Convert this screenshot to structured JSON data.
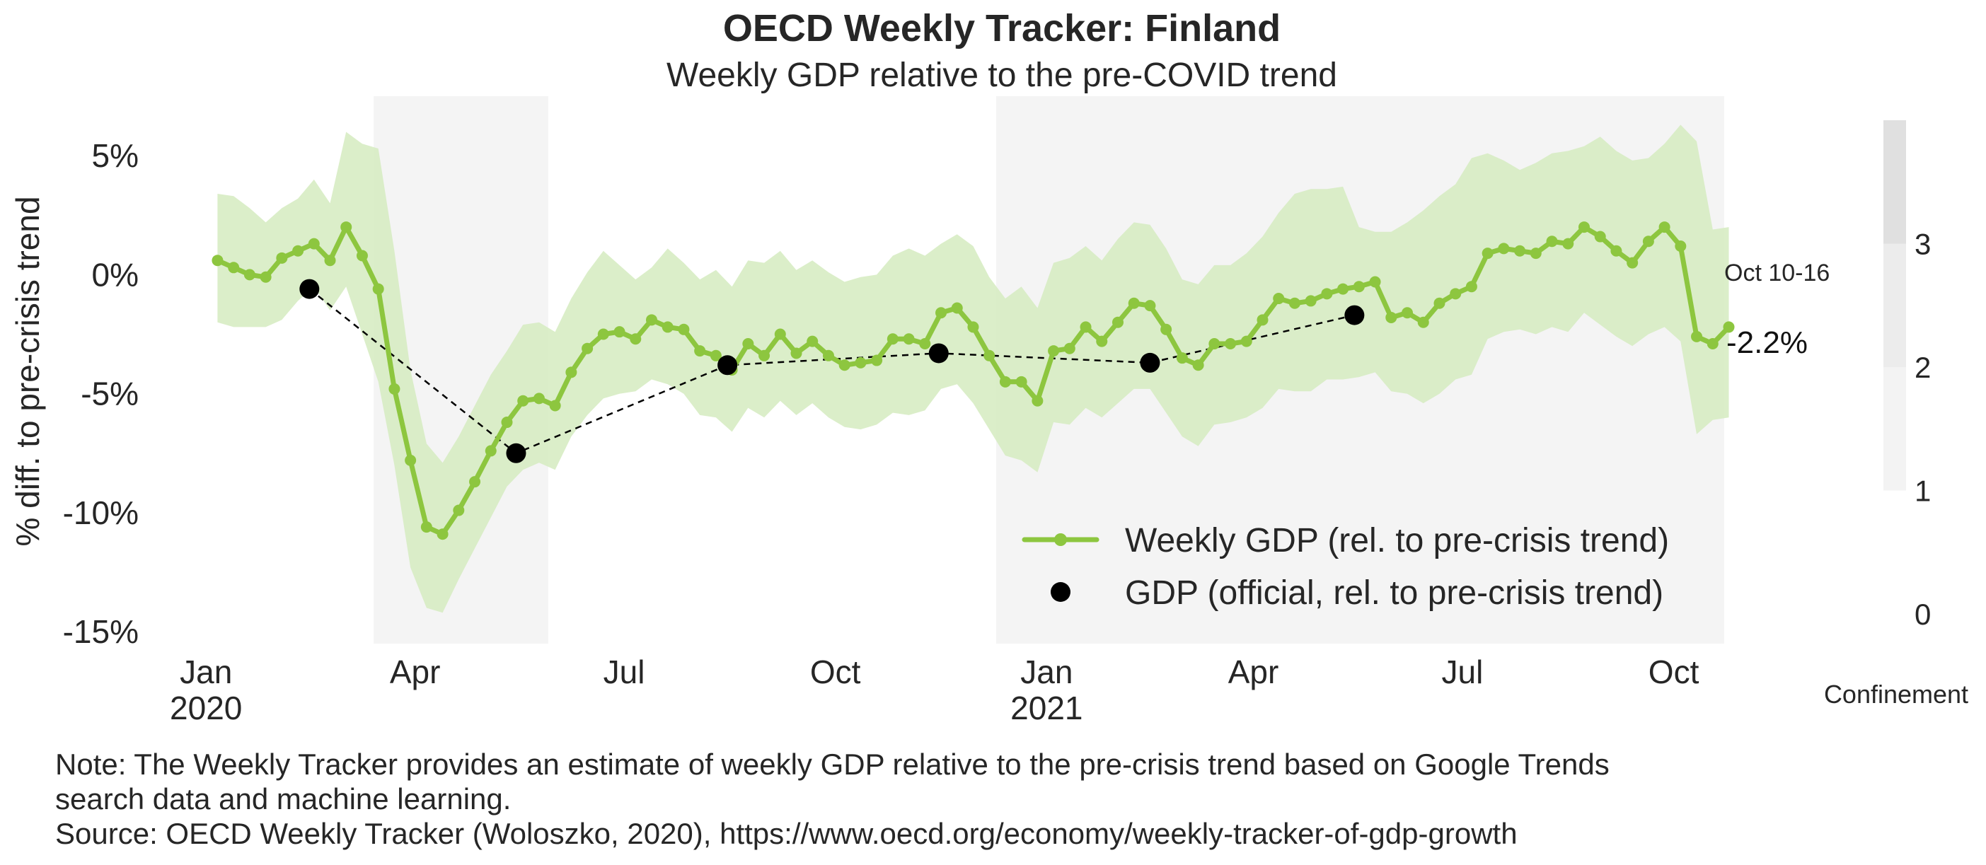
{
  "chart_data": {
    "type": "line",
    "title": "OECD Weekly Tracker: Finland",
    "subtitle": "Weekly GDP relative to the pre-COVID trend",
    "ylabel": "% diff. to pre-crisis trend",
    "ylim": [
      -15.5,
      7.5
    ],
    "yticks": [
      5,
      0,
      -5,
      -10,
      -15
    ],
    "ytick_labels": [
      "5%",
      "0%",
      "-5%",
      "-10%",
      "-15%"
    ],
    "xlim": [
      "2019-12-23",
      "2021-10-23"
    ],
    "xticks": [
      {
        "date": "2020-01-01",
        "label1": "Jan",
        "label2": "2020"
      },
      {
        "date": "2020-04-01",
        "label1": "Apr",
        "label2": ""
      },
      {
        "date": "2020-07-01",
        "label1": "Jul",
        "label2": ""
      },
      {
        "date": "2020-10-01",
        "label1": "Oct",
        "label2": ""
      },
      {
        "date": "2021-01-01",
        "label1": "Jan",
        "label2": "2021"
      },
      {
        "date": "2021-04-01",
        "label1": "Apr",
        "label2": ""
      },
      {
        "date": "2021-07-01",
        "label1": "Jul",
        "label2": ""
      },
      {
        "date": "2021-10-01",
        "label1": "Oct",
        "label2": ""
      }
    ],
    "grid": false,
    "legend_position": "lower-right",
    "confinement_periods": [
      {
        "start": "2020-03-14",
        "end": "2020-05-29",
        "level": 1
      },
      {
        "start": "2020-12-10",
        "end": "2021-10-23",
        "level": 1
      }
    ],
    "series": [
      {
        "name": "Weekly GDP (rel. to pre-crisis trend)",
        "type": "line",
        "start_date": "2020-01-06",
        "step_days": 7,
        "y": [
          0.6,
          0.3,
          0.0,
          -0.1,
          0.7,
          1.0,
          1.3,
          0.6,
          2.0,
          0.8,
          -0.6,
          -4.8,
          -7.8,
          -10.6,
          -10.9,
          -9.9,
          -8.7,
          -7.4,
          -6.2,
          -5.3,
          -5.2,
          -5.5,
          -4.1,
          -3.1,
          -2.5,
          -2.4,
          -2.7,
          -1.9,
          -2.2,
          -2.3,
          -3.2,
          -3.4,
          -4.0,
          -2.9,
          -3.4,
          -2.5,
          -3.3,
          -2.8,
          -3.4,
          -3.8,
          -3.7,
          -3.6,
          -2.7,
          -2.7,
          -2.9,
          -1.6,
          -1.4,
          -2.2,
          -3.4,
          -4.5,
          -4.5,
          -5.3,
          -3.2,
          -3.1,
          -2.2,
          -2.8,
          -2.0,
          -1.2,
          -1.3,
          -2.3,
          -3.5,
          -3.8,
          -2.9,
          -2.9,
          -2.8,
          -1.9,
          -1.0,
          -1.2,
          -1.1,
          -0.8,
          -0.6,
          -0.5,
          -0.3,
          -1.8,
          -1.6,
          -2.0,
          -1.2,
          -0.8,
          -0.5,
          0.9,
          1.1,
          1.0,
          0.9,
          1.4,
          1.3,
          2.0,
          1.6,
          1.0,
          0.5,
          1.4,
          2.0,
          1.2,
          -2.6,
          -2.9,
          -2.2
        ],
        "upper": [
          3.4,
          3.3,
          2.8,
          2.2,
          2.8,
          3.2,
          4.0,
          3.0,
          6.0,
          5.5,
          5.3,
          1.0,
          -4.0,
          -7.1,
          -7.9,
          -6.8,
          -5.5,
          -4.2,
          -3.2,
          -2.1,
          -2.0,
          -2.4,
          -1.0,
          0.1,
          1.0,
          0.4,
          -0.2,
          0.3,
          1.1,
          0.5,
          -0.2,
          0.2,
          -0.5,
          0.6,
          0.5,
          1.0,
          0.2,
          0.6,
          0.1,
          -0.3,
          -0.1,
          0.0,
          0.8,
          1.1,
          0.8,
          1.3,
          1.7,
          1.2,
          -0.1,
          -1.0,
          -0.5,
          -1.4,
          0.5,
          0.7,
          1.2,
          0.6,
          1.5,
          2.2,
          2.1,
          1.1,
          -0.2,
          -0.4,
          0.4,
          0.4,
          0.9,
          1.6,
          2.6,
          3.4,
          3.6,
          3.6,
          3.7,
          2.0,
          1.8,
          1.8,
          2.2,
          2.7,
          3.3,
          3.8,
          4.9,
          5.1,
          4.8,
          4.4,
          4.7,
          5.1,
          5.2,
          5.4,
          5.8,
          5.2,
          4.8,
          4.9,
          5.5,
          6.3,
          5.6,
          1.9,
          2.0
        ],
        "lower": [
          -2.0,
          -2.2,
          -2.2,
          -2.2,
          -1.9,
          -1.1,
          -0.5,
          -1.5,
          -0.5,
          -2.5,
          -4.5,
          -8.0,
          -12.3,
          -14.0,
          -14.2,
          -12.8,
          -11.5,
          -10.2,
          -8.9,
          -8.2,
          -7.9,
          -8.2,
          -6.8,
          -5.9,
          -5.2,
          -5.0,
          -4.9,
          -4.4,
          -4.6,
          -5.0,
          -5.9,
          -6.0,
          -6.6,
          -5.6,
          -6.0,
          -5.3,
          -5.9,
          -5.4,
          -6.0,
          -6.4,
          -6.5,
          -6.3,
          -5.8,
          -5.9,
          -5.7,
          -4.8,
          -4.6,
          -5.4,
          -6.5,
          -7.6,
          -7.8,
          -8.3,
          -6.2,
          -6.3,
          -5.6,
          -6.0,
          -5.4,
          -4.8,
          -4.8,
          -5.8,
          -6.8,
          -7.2,
          -6.3,
          -6.2,
          -6.0,
          -5.6,
          -4.8,
          -4.9,
          -4.9,
          -4.4,
          -4.4,
          -4.3,
          -4.1,
          -4.9,
          -5.0,
          -5.4,
          -5.0,
          -4.4,
          -4.2,
          -2.7,
          -2.4,
          -2.3,
          -2.5,
          -2.2,
          -2.4,
          -1.6,
          -2.1,
          -2.6,
          -3.0,
          -2.5,
          -2.2,
          -2.8,
          -6.7,
          -6.1,
          -6.0
        ]
      },
      {
        "name": "GDP (official, rel. to pre-crisis trend)",
        "type": "scatter",
        "points": [
          {
            "x": "2020-02-15",
            "y": -0.6
          },
          {
            "x": "2020-05-15",
            "y": -7.5
          },
          {
            "x": "2020-08-15",
            "y": -3.8
          },
          {
            "x": "2020-11-15",
            "y": -3.3
          },
          {
            "x": "2021-02-15",
            "y": -3.7
          },
          {
            "x": "2021-05-15",
            "y": -1.7
          }
        ]
      }
    ],
    "annotations": {
      "last_week_label": "Oct 10-16",
      "last_value_label": "-2.2%"
    },
    "colorbar": {
      "label": "Confinement",
      "ticks": [
        "3",
        "2",
        "1",
        "0"
      ],
      "levels": [
        0,
        1,
        2,
        3,
        4
      ]
    }
  },
  "colors": {
    "line": "#8dc63f",
    "band": "#d5ebc0",
    "shade": "#f4f4f4",
    "official": "#000000",
    "cbar_1": "#f3f3f3",
    "cbar_2": "#ececec",
    "cbar_3": "#e0e0e0"
  },
  "notes": {
    "line1": "Note: The Weekly Tracker provides an estimate of weekly GDP relative to the pre-crisis trend based on Google Trends",
    "line2": "search data and machine learning.",
    "line3": "Source: OECD Weekly Tracker (Woloszko, 2020), https://www.oecd.org/economy/weekly-tracker-of-gdp-growth"
  }
}
